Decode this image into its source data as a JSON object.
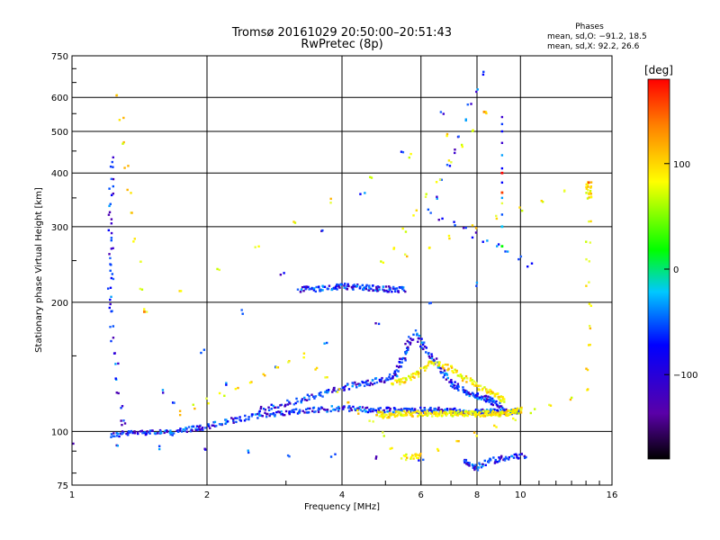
{
  "chart_data": {
    "type": "scatter",
    "title": "Tromsø 20161029 20:50:00–20:51:43",
    "subtitle": "RwPretec (8p)",
    "xlabel": "Frequency [MHz]",
    "ylabel": "Stationary phase Virtual Height [km]",
    "x_scale": "log",
    "y_scale": "log",
    "xlim": [
      1,
      16
    ],
    "ylim": [
      75,
      750
    ],
    "x_ticks": [
      1,
      2,
      4,
      6,
      8,
      10,
      16
    ],
    "x_tick_labels": [
      "1",
      "2",
      "4",
      "6",
      "8",
      "10",
      "16"
    ],
    "y_ticks": [
      75,
      100,
      200,
      300,
      400,
      500,
      600,
      750
    ],
    "y_tick_labels": [
      "75",
      "100",
      "200",
      "300",
      "400",
      "500",
      "600",
      "750"
    ],
    "grid": true,
    "phases_info": {
      "title": "Phases",
      "line1": "mean, sd,O: −91.2, 18.5",
      "line2": "mean, sd,X:  92.2, 26.6"
    },
    "colorbar": {
      "label": "[deg]",
      "min": -180,
      "max": 180,
      "ticks": [
        100,
        0,
        -100
      ],
      "tick_labels": [
        "100",
        "0",
        "−100"
      ],
      "colors": [
        "#000000",
        "#5a00a8",
        "#0000ff",
        "#00c8ff",
        "#00ff00",
        "#ffff00",
        "#ff7f00",
        "#ff0000"
      ]
    },
    "series_O": {
      "description_source": "blue/purple points",
      "segments": [
        {
          "x": [
            1.22,
            1.35,
            1.5,
            1.65,
            1.8,
            1.95
          ],
          "y": [
            98,
            99,
            100,
            99,
            101,
            102
          ]
        },
        {
          "x": [
            1.95,
            2.2,
            2.5,
            2.8,
            3.1,
            3.4,
            3.8,
            4.2,
            4.6,
            5.0,
            5.4,
            5.8,
            6.2,
            6.6,
            7.0,
            7.5,
            8.0,
            8.5,
            9.0,
            9.5,
            10.0
          ],
          "y": [
            102,
            105,
            108,
            110,
            111,
            112,
            113,
            113,
            112,
            112,
            112,
            112,
            112,
            112,
            112,
            111,
            111,
            111,
            111,
            111,
            112
          ]
        },
        {
          "x": [
            2.6,
            3.0,
            3.4,
            3.8,
            4.2,
            4.6,
            5.0,
            5.3,
            5.5,
            5.7
          ],
          "y": [
            112,
            116,
            120,
            124,
            128,
            130,
            132,
            136,
            150,
            165
          ]
        },
        {
          "x": [
            3.2,
            3.5,
            3.8,
            4.0,
            4.3,
            4.6,
            4.9,
            5.2,
            5.5
          ],
          "y": [
            214,
            215,
            216,
            218,
            217,
            216,
            215,
            214,
            214
          ]
        },
        {
          "x": [
            5.8,
            6.2,
            6.6,
            7.0,
            7.4,
            7.8,
            8.2,
            8.6,
            9.0
          ],
          "y": [
            170,
            155,
            140,
            130,
            125,
            122,
            120,
            118,
            115
          ]
        },
        {
          "x": [
            9.1,
            9.1,
            9.1,
            9.1,
            9.1,
            9.1,
            9.1,
            9.1,
            9.1
          ],
          "y": [
            540,
            520,
            500,
            470,
            440,
            410,
            380,
            350,
            320
          ]
        },
        {
          "x": [
            1.22,
            1.22,
            1.22,
            1.3,
            8.2,
            6.3,
            10.5,
            1.0,
            7.5,
            7.9,
            8.5,
            9.3,
            10.2
          ],
          "y": [
            430,
            280,
            188,
            100,
            680,
            325,
            245,
            93,
            85,
            82,
            85,
            87,
            88
          ]
        }
      ]
    },
    "series_X": {
      "description_source": "yellow/orange/green points",
      "segments": [
        {
          "x": [
            4.8,
            5.0,
            5.3,
            5.6,
            6.0,
            6.4,
            6.8,
            7.2,
            7.6,
            8.0,
            8.4,
            8.8,
            9.2,
            9.6,
            10.0
          ],
          "y": [
            110,
            109,
            110,
            110,
            110,
            110,
            110,
            110,
            110,
            110,
            110,
            110,
            110,
            111,
            112
          ]
        },
        {
          "x": [
            5.2,
            5.6,
            6.0,
            6.4,
            7.0,
            7.6,
            8.2,
            8.8,
            9.2
          ],
          "y": [
            130,
            132,
            138,
            145,
            140,
            132,
            126,
            122,
            118
          ]
        },
        {
          "x": [
            9.1,
            9.1,
            9.1,
            9.1,
            9.1
          ],
          "y": [
            400,
            360,
            340,
            300,
            270
          ]
        },
        {
          "x": [
            1.27,
            1.45,
            8.3,
            4.9,
            14.2,
            14.2,
            14.2,
            6.0,
            5.5,
            3.3,
            1.75
          ],
          "y": [
            610,
            190,
            555,
            246,
            380,
            350,
            125,
            88,
            87,
            150,
            110
          ]
        }
      ]
    }
  }
}
